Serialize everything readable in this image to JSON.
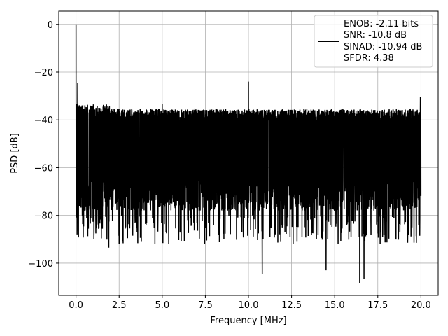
{
  "chart_data": {
    "type": "line",
    "title": "",
    "xlabel": "Frequency [MHz]",
    "ylabel": "PSD [dB]",
    "xlim": [
      -1.0,
      21.0
    ],
    "ylim": [
      -113.5,
      5.5
    ],
    "xticks": [
      0.0,
      2.5,
      5.0,
      7.5,
      10.0,
      12.5,
      15.0,
      17.5,
      20.0
    ],
    "xtick_labels": [
      "0.0",
      "2.5",
      "5.0",
      "7.5",
      "10.0",
      "12.5",
      "15.0",
      "17.5",
      "20.0"
    ],
    "yticks": [
      0,
      -20,
      -40,
      -60,
      -80,
      -100
    ],
    "ytick_labels": [
      "0",
      "−20",
      "−40",
      "−60",
      "−80",
      "−100"
    ],
    "grid": true,
    "legend": {
      "placement": "upper-right",
      "entries": [
        "ENOB: -2.11 bits",
        "SNR: -10.8 dB",
        "SINAD: -10.94 dB",
        "SFDR: 4.38"
      ]
    },
    "series": [
      {
        "color": "#000000",
        "noise_band_top_db": -38,
        "noise_band_center_db": -60,
        "peaks": [
          {
            "x": 0.0,
            "y": 0.0
          },
          {
            "x": 0.1,
            "y": -24.5
          },
          {
            "x": 5.0,
            "y": -33.5
          },
          {
            "x": 10.0,
            "y": -24.0
          },
          {
            "x": 19.97,
            "y": -30.5
          }
        ],
        "dips": [
          {
            "x": 1.9,
            "y": -93.5
          },
          {
            "x": 10.8,
            "y": -104.5
          },
          {
            "x": 14.5,
            "y": -103.0
          },
          {
            "x": 16.45,
            "y": -108.5
          },
          {
            "x": 16.7,
            "y": -106.5
          }
        ]
      }
    ]
  }
}
